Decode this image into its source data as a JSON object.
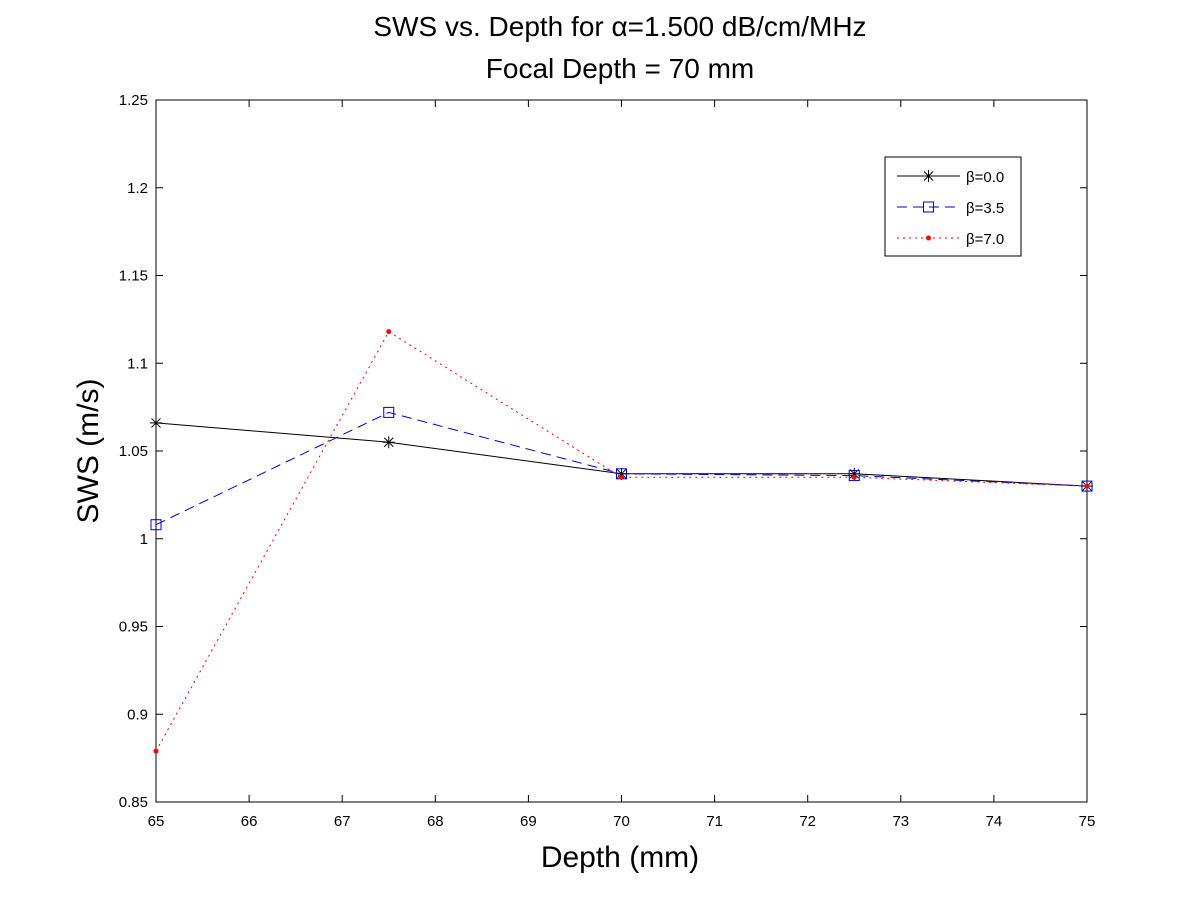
{
  "chart_data": {
    "type": "line",
    "title_line1": "SWS vs. Depth for α=1.500 dB/cm/MHz",
    "title_line2": "Focal Depth = 70 mm",
    "xlabel": "Depth (mm)",
    "ylabel": "SWS (m/s)",
    "xlim": [
      65,
      75
    ],
    "ylim": [
      0.85,
      1.25
    ],
    "x_ticks": [
      "65",
      "66",
      "67",
      "68",
      "69",
      "70",
      "71",
      "72",
      "73",
      "74",
      "75"
    ],
    "y_ticks": [
      "0.85",
      "0.9",
      "0.95",
      "1",
      "1.05",
      "1.1",
      "1.15",
      "1.2",
      "1.25"
    ],
    "x": [
      65,
      67.5,
      70,
      72.5,
      75
    ],
    "grid": false,
    "legend_position": "top-right",
    "series": [
      {
        "name": "β=0.0",
        "values": [
          1.066,
          1.055,
          1.037,
          1.037,
          1.03
        ],
        "color": "#000000",
        "line": "solid",
        "marker": "star"
      },
      {
        "name": "β=3.5",
        "values": [
          1.008,
          1.072,
          1.037,
          1.036,
          1.03
        ],
        "color": "#0000cc",
        "line": "dashed",
        "marker": "square"
      },
      {
        "name": "β=7.0",
        "values": [
          0.879,
          1.118,
          1.035,
          1.035,
          1.03
        ],
        "color": "#ff0000",
        "line": "dotted",
        "marker": "dot"
      }
    ]
  }
}
